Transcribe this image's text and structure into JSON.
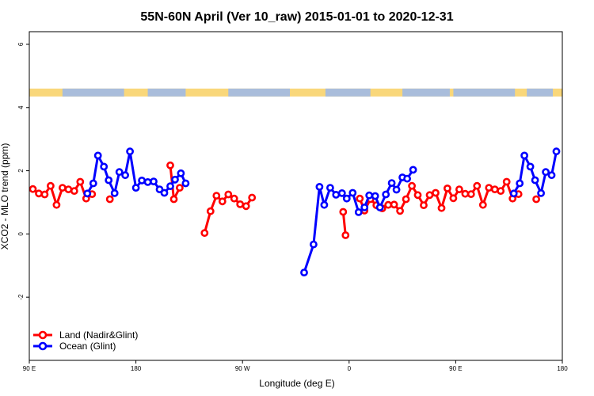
{
  "chart_data": {
    "type": "line",
    "title": "55N-60N April (Ver 10_raw)   2015-01-01 to 2020-12-31",
    "xlabel": "Longitude (deg E)",
    "ylabel": "XCO2 - MLO trend (ppm)",
    "xlim": [
      90,
      540
    ],
    "ylim": [
      -4,
      6.4
    ],
    "x_ticks": [
      {
        "value": 90,
        "label": "90 E"
      },
      {
        "value": 180,
        "label": "180"
      },
      {
        "value": 270,
        "label": "90 W"
      },
      {
        "value": 360,
        "label": "0"
      },
      {
        "value": 450,
        "label": "90 E"
      },
      {
        "value": 540,
        "label": "180"
      }
    ],
    "y_ticks": [
      {
        "value": -2,
        "label": "-2"
      },
      {
        "value": 0,
        "label": "0"
      },
      {
        "value": 2,
        "label": "2"
      },
      {
        "value": 4,
        "label": "4"
      },
      {
        "value": 6,
        "label": "6"
      }
    ],
    "land_mask_band": {
      "y_range": [
        4.35,
        4.6
      ],
      "land_color": "#F9D77A",
      "ocean_color": "#A9BDDB"
    },
    "legend": {
      "position": "bottom-left",
      "entries": [
        {
          "name": "Land (Nadir&Glint)",
          "color": "#FF0000"
        },
        {
          "name": "Ocean (Glint)",
          "color": "#0000FF"
        }
      ]
    },
    "series": [
      {
        "name": "Land (Nadir&Glint)",
        "color": "#FF0000",
        "segments": [
          [
            [
              93,
              1.42
            ],
            [
              98,
              1.28
            ],
            [
              103,
              1.25
            ],
            [
              108,
              1.52
            ],
            [
              113,
              0.92
            ],
            [
              118,
              1.46
            ],
            [
              123,
              1.41
            ],
            [
              128,
              1.36
            ],
            [
              133,
              1.65
            ],
            [
              138,
              1.12
            ],
            [
              143,
              1.26
            ]
          ],
          [
            [
              158,
              1.1
            ]
          ],
          [
            [
              209,
              2.17
            ],
            [
              212,
              1.1
            ],
            [
              217,
              1.46
            ]
          ],
          [
            [
              238,
              0.03
            ],
            [
              243,
              0.72
            ],
            [
              248,
              1.21
            ],
            [
              253,
              1.03
            ],
            [
              258,
              1.25
            ],
            [
              263,
              1.12
            ],
            [
              268,
              0.94
            ],
            [
              273,
              0.88
            ],
            [
              278,
              1.15
            ]
          ],
          [
            [
              355,
              0.7
            ],
            [
              357,
              -0.04
            ]
          ],
          [
            [
              369,
              1.12
            ],
            [
              373,
              0.74
            ],
            [
              378,
              1.1
            ],
            [
              383,
              0.91
            ],
            [
              388,
              0.81
            ],
            [
              393,
              0.92
            ],
            [
              398,
              0.93
            ],
            [
              403,
              0.73
            ],
            [
              408,
              1.1
            ],
            [
              413,
              1.52
            ],
            [
              418,
              1.23
            ],
            [
              423,
              0.91
            ],
            [
              428,
              1.23
            ],
            [
              433,
              1.3
            ],
            [
              438,
              0.82
            ],
            [
              443,
              1.44
            ],
            [
              448,
              1.13
            ],
            [
              453,
              1.41
            ],
            [
              458,
              1.27
            ],
            [
              463,
              1.26
            ],
            [
              468,
              1.52
            ],
            [
              473,
              0.92
            ],
            [
              478,
              1.46
            ],
            [
              483,
              1.41
            ],
            [
              488,
              1.36
            ],
            [
              493,
              1.65
            ],
            [
              498,
              1.12
            ],
            [
              503,
              1.26
            ]
          ],
          [
            [
              518,
              1.1
            ]
          ]
        ]
      },
      {
        "name": "Ocean (Glint)",
        "color": "#0000FF",
        "segments": [
          [
            [
              139,
              1.28
            ],
            [
              144,
              1.6
            ],
            [
              148,
              2.48
            ],
            [
              153,
              2.13
            ],
            [
              157,
              1.7
            ],
            [
              162,
              1.29
            ],
            [
              166,
              1.96
            ],
            [
              171,
              1.86
            ],
            [
              175,
              2.61
            ],
            [
              180,
              1.46
            ],
            [
              185,
              1.69
            ],
            [
              190,
              1.64
            ],
            [
              195,
              1.66
            ],
            [
              200,
              1.41
            ],
            [
              204,
              1.3
            ],
            [
              209,
              1.51
            ],
            [
              213,
              1.72
            ],
            [
              218,
              1.92
            ],
            [
              222,
              1.6
            ]
          ],
          [
            [
              322,
              -1.22
            ],
            [
              330,
              -0.33
            ],
            [
              335,
              1.49
            ],
            [
              339,
              0.92
            ],
            [
              344,
              1.46
            ],
            [
              349,
              1.24
            ],
            [
              354,
              1.29
            ],
            [
              358,
              1.12
            ],
            [
              363,
              1.3
            ],
            [
              368,
              0.69
            ],
            [
              373,
              0.84
            ],
            [
              377,
              1.22
            ],
            [
              382,
              1.2
            ],
            [
              386,
              0.84
            ],
            [
              391,
              1.25
            ],
            [
              396,
              1.61
            ],
            [
              400,
              1.4
            ],
            [
              405,
              1.79
            ],
            [
              409,
              1.75
            ],
            [
              414,
              2.03
            ]
          ],
          [
            [
              499,
              1.28
            ],
            [
              504,
              1.6
            ],
            [
              508,
              2.48
            ],
            [
              513,
              2.13
            ],
            [
              517,
              1.7
            ],
            [
              522,
              1.29
            ],
            [
              526,
              1.96
            ],
            [
              531,
              1.86
            ],
            [
              535,
              2.61
            ]
          ]
        ]
      }
    ]
  }
}
